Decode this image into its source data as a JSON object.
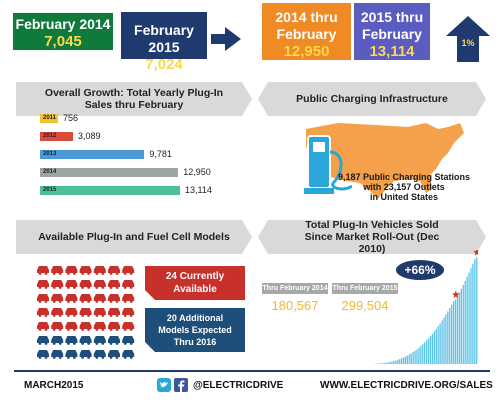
{
  "header": {
    "feb2014": {
      "label": "February 2014",
      "value": "7,045",
      "color": "#0f7a3c"
    },
    "feb2015": {
      "label": "February 2015",
      "value": "7,024",
      "color": "#1e3a6e"
    },
    "ytd2014": {
      "line1": "2014 thru",
      "line2": "February",
      "value": "12,950",
      "color": "#f08a24"
    },
    "ytd2015": {
      "line1": "2015 thru",
      "line2": "February",
      "value": "13,114",
      "color": "#5a5cc0"
    },
    "growth": {
      "value": "1%",
      "color": "#1e3a6e"
    }
  },
  "sections": {
    "overall_growth": "Overall Growth: Total Yearly Plug-In Sales thru February",
    "charging": "Public Charging Infrastructure",
    "models": "Available Plug-In and Fuel Cell Models",
    "total_sold": "Total Plug-In Vehicles Sold Since Market Roll-Out (Dec 2010)"
  },
  "chart_data": [
    {
      "type": "bar",
      "title": "Overall Growth: Total Yearly Plug-In Sales thru February",
      "categories": [
        "2011",
        "2012",
        "2013",
        "2014",
        "2015"
      ],
      "values": [
        756,
        3089,
        9781,
        12950,
        13114
      ],
      "value_labels": [
        "756",
        "3,089",
        "9,781",
        "12,950",
        "13,114"
      ],
      "colors": [
        "#f2c12e",
        "#d94c3d",
        "#4a9ad8",
        "#9ea3a6",
        "#4fbf9a"
      ],
      "xlim": [
        0,
        13114
      ],
      "orientation": "horizontal"
    },
    {
      "type": "bar",
      "title": "Total Plug-In Vehicles Sold Since Market Roll-Out (Dec 2010)",
      "values": [
        300,
        600,
        900,
        1300,
        1800,
        2400,
        3100,
        3900,
        4800,
        5800,
        7000,
        8400,
        10000,
        11800,
        13800,
        16000,
        18400,
        21000,
        23800,
        26800,
        30000,
        33500,
        37300,
        41400,
        45800,
        50500,
        55500,
        60800,
        66400,
        72300,
        78500,
        85000,
        91800,
        98900,
        106300,
        114000,
        122000,
        130300,
        138900,
        147800,
        157000,
        166500,
        176300,
        180567,
        190500,
        200800,
        211400,
        222300,
        233500,
        245000,
        256800,
        268900,
        281300,
        294000,
        299504
      ],
      "highlight_indices": [
        43,
        54
      ],
      "ylim": [
        0,
        320000
      ]
    }
  ],
  "charging": {
    "text": "9,187 Public Charging Stations with 23,157 Outlets in United States",
    "line1": "9,187 Public Charging Stations",
    "line2": "with 23,157 Outlets",
    "line3": "in United States"
  },
  "models": {
    "available": {
      "line1": "24 Currently",
      "line2": "Available",
      "color": "#c8302c"
    },
    "expected": {
      "line1": "20 Additional",
      "line2": "Models Expected",
      "line3": "Thru 2016",
      "color": "#1e4f7a"
    }
  },
  "total_sold": {
    "label2014": "Thru February 2014",
    "value2014": "180,567",
    "label2015": "Thru February 2015",
    "value2015": "299,504",
    "growth": "+66%"
  },
  "footer": {
    "date": "MARCH2015",
    "handle": "@ELECTRICDRIVE",
    "url": "WWW.ELECTRICDRIVE.ORG/SALES"
  }
}
